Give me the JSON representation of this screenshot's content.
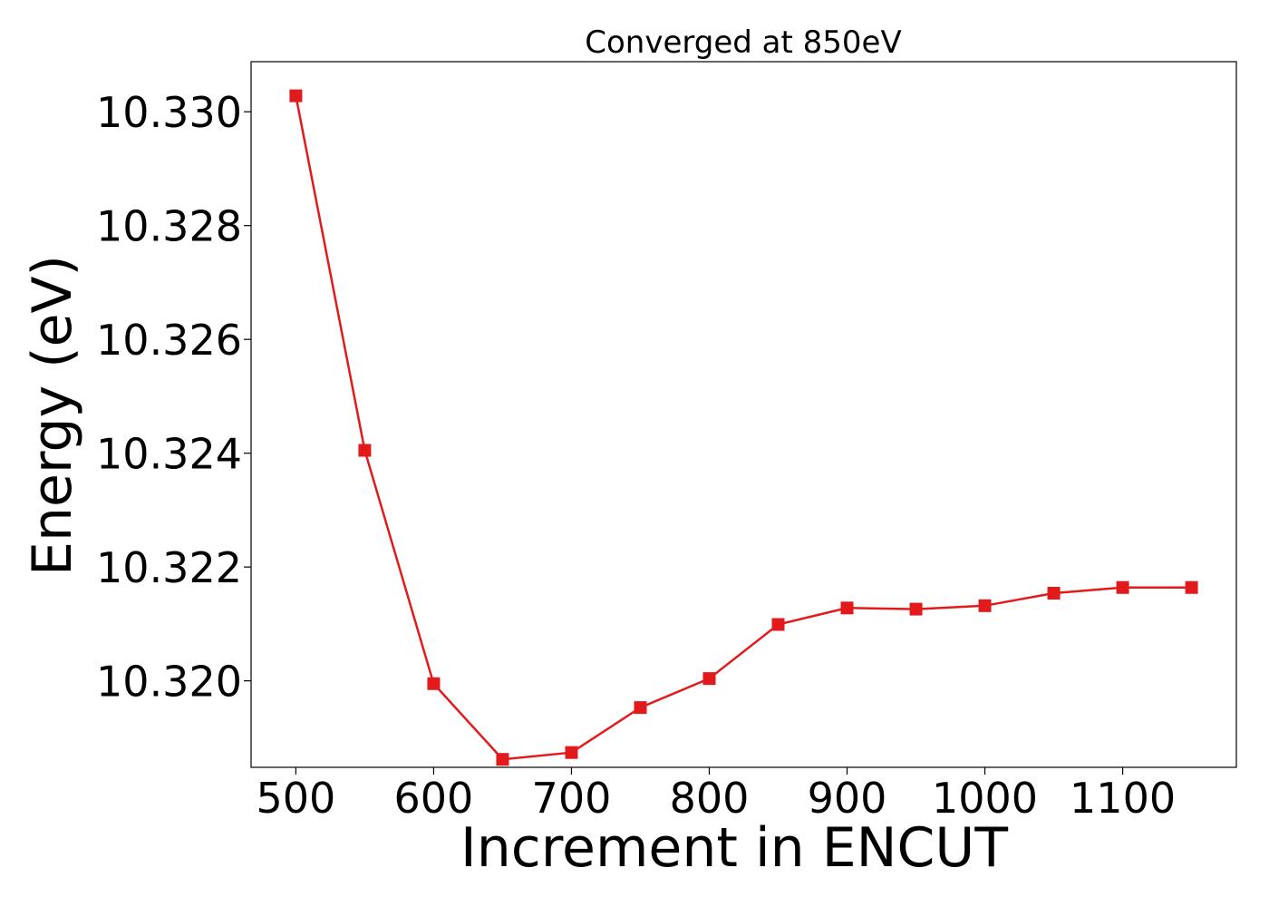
{
  "chart_data": {
    "type": "line",
    "title": "Converged at 850eV",
    "xlabel": "Increment in ENCUT",
    "ylabel": "Energy (eV)",
    "x": [
      500,
      550,
      600,
      650,
      700,
      750,
      800,
      850,
      900,
      950,
      1000,
      1050,
      1100,
      1150
    ],
    "series": [
      {
        "values": [
          10.33028,
          10.32405,
          10.31995,
          10.31862,
          10.31874,
          10.31953,
          10.32004,
          10.32099,
          10.32128,
          10.32126,
          10.32132,
          10.32154,
          10.32164,
          10.32164
        ],
        "color": "#e31a1c",
        "marker": "square"
      }
    ],
    "xticks": [
      500,
      600,
      700,
      800,
      900,
      1000,
      1100
    ],
    "xtick_labels": [
      "500",
      "600",
      "700",
      "800",
      "900",
      "1000",
      "1100"
    ],
    "yticks": [
      10.32,
      10.322,
      10.324,
      10.326,
      10.328,
      10.33
    ],
    "ytick_labels": [
      "10.320",
      "10.322",
      "10.324",
      "10.326",
      "10.328",
      "10.330"
    ],
    "xlim": [
      467.5,
      1182.5
    ],
    "ylim": [
      10.31848,
      10.33088
    ],
    "grid": false,
    "legend": "none"
  }
}
